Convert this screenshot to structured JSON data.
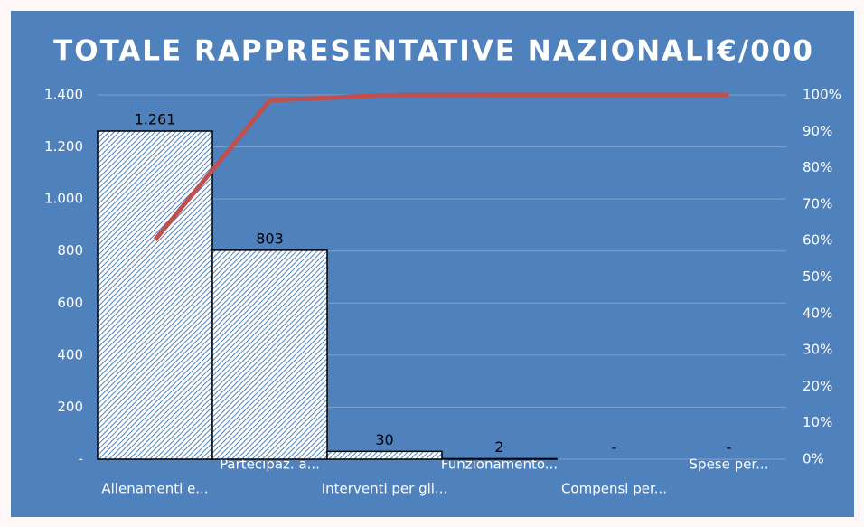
{
  "chart_data": {
    "type": "pareto",
    "title": "TOTALE  RAPPRESENTATIVE  NAZIONALI€/000",
    "categories": [
      "Allenamenti e...",
      "Partecipaz. a...",
      "Interventi per gli...",
      "Funzionamento...",
      "Compensi per...",
      "Spese per..."
    ],
    "series": [
      {
        "type": "bar",
        "color": "#4f81bd",
        "values": [
          1261,
          803,
          30,
          2,
          0,
          0
        ],
        "value_labels": [
          "1.261",
          "803",
          "30",
          "2",
          "-",
          "-"
        ]
      },
      {
        "type": "line",
        "axis": "y2",
        "color": "#c0504d",
        "values": [
          60.2,
          98.5,
          99.9,
          100,
          100,
          100
        ]
      }
    ],
    "ylim": [
      0,
      1400
    ],
    "yticks": [
      {
        "value": 0,
        "label": "-"
      },
      200,
      400,
      600,
      800,
      {
        "value": 1000,
        "label": "1.000"
      },
      {
        "value": 1200,
        "label": "1.200"
      },
      {
        "value": 1400,
        "label": "1.400"
      }
    ],
    "y2lim": [
      0,
      100
    ],
    "y2ticks": [
      {
        "value": 0,
        "label": "0%"
      },
      {
        "value": 10,
        "label": "10%"
      },
      {
        "value": 20,
        "label": "20%"
      },
      {
        "value": 30,
        "label": "30%"
      },
      {
        "value": 40,
        "label": "40%"
      },
      {
        "value": 50,
        "label": "50%"
      },
      {
        "value": 60,
        "label": "60%"
      },
      {
        "value": 70,
        "label": "70%"
      },
      {
        "value": 80,
        "label": "80%"
      },
      {
        "value": 90,
        "label": "90%"
      },
      {
        "value": 100,
        "label": "100%"
      }
    ],
    "grid": true
  }
}
